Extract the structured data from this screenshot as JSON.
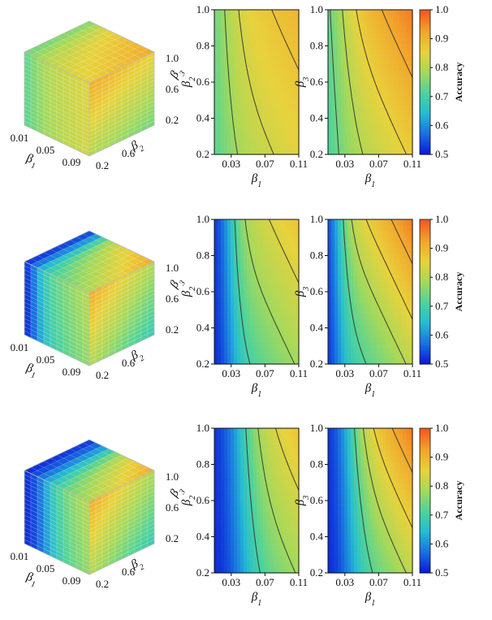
{
  "colors": {
    "colormap": [
      "#0b1bd6",
      "#1a73e0",
      "#26bcd3",
      "#4fd39a",
      "#a6d95a",
      "#e8d23c",
      "#f2a52c",
      "#f25a22"
    ],
    "contour_line": "#333333",
    "cube_frame": "#bbbbbb"
  },
  "colorbar": {
    "label": "Accuracy",
    "ticks": [
      "0.5",
      "0.6",
      "0.7",
      "0.8",
      "0.9",
      "1.0"
    ],
    "range": [
      0.5,
      1.0
    ]
  },
  "chart_data": [
    {
      "type": "heatmap",
      "style": "3d-cube",
      "row": 1,
      "axes": {
        "x": "β1",
        "y": "β2",
        "z": "β3"
      },
      "x_ticks": [
        "0.01",
        "0.05",
        "0.09"
      ],
      "y_ticks": [
        "0.6",
        "0.2"
      ],
      "z_ticks": [
        "1.0",
        "0.6",
        "0.2"
      ],
      "profile": {
        "floor": 0.72,
        "gain": 0.2,
        "power": 1.0,
        "mid": 0.02,
        "width": 0.012
      }
    },
    {
      "type": "heatmap",
      "style": "contour",
      "row": 1,
      "projection": "β1-β2",
      "xlabel": "β1",
      "ylabel": "β2",
      "x_ticks": [
        "0.03",
        "0.07",
        "0.11"
      ],
      "y_ticks": [
        "0.2",
        "0.4",
        "0.6",
        "0.8",
        "1.0"
      ],
      "xlim": [
        0.01,
        0.11
      ],
      "ylim": [
        0.2,
        1.0
      ],
      "profile": {
        "floor": 0.7,
        "gain": 0.2,
        "power": 0.8,
        "mid": 0.02,
        "width": 0.012
      },
      "contour_levels": [
        0.78,
        0.83,
        0.88
      ]
    },
    {
      "type": "heatmap",
      "style": "contour",
      "row": 1,
      "projection": "β1-β3",
      "xlabel": "β1",
      "ylabel": "β3",
      "x_ticks": [
        "0.03",
        "0.07",
        "0.11"
      ],
      "y_ticks": [
        "0.2",
        "0.4",
        "0.6",
        "0.8",
        "1.0"
      ],
      "xlim": [
        0.01,
        0.11
      ],
      "ylim": [
        0.2,
        1.0
      ],
      "profile": {
        "floor": 0.68,
        "gain": 0.29,
        "power": 1.3,
        "mid": 0.02,
        "width": 0.012
      },
      "contour_levels": [
        0.74,
        0.8,
        0.86,
        0.92
      ]
    },
    {
      "type": "heatmap",
      "style": "3d-cube",
      "row": 2,
      "axes": {
        "x": "β1",
        "y": "β2",
        "z": "β3"
      },
      "x_ticks": [
        "0.01",
        "0.05",
        "0.09"
      ],
      "y_ticks": [
        "0.6",
        "0.2"
      ],
      "z_ticks": [
        "1.0",
        "0.6",
        "0.2"
      ],
      "profile": {
        "floor": 0.5,
        "gain": 0.42,
        "power": 1.0,
        "mid": 0.028,
        "width": 0.008
      }
    },
    {
      "type": "heatmap",
      "style": "contour",
      "row": 2,
      "projection": "β1-β2",
      "xlabel": "β1",
      "ylabel": "β2",
      "x_ticks": [
        "0.03",
        "0.07",
        "0.11"
      ],
      "y_ticks": [
        "0.2",
        "0.4",
        "0.6",
        "0.8",
        "1.0"
      ],
      "xlim": [
        0.01,
        0.11
      ],
      "ylim": [
        0.2,
        1.0
      ],
      "profile": {
        "floor": 0.5,
        "gain": 0.38,
        "power": 0.8,
        "mid": 0.028,
        "width": 0.008
      },
      "contour_levels": [
        0.7,
        0.78,
        0.84,
        0.88
      ]
    },
    {
      "type": "heatmap",
      "style": "contour",
      "row": 2,
      "projection": "β1-β3",
      "xlabel": "β1",
      "ylabel": "β3",
      "x_ticks": [
        "0.03",
        "0.07",
        "0.11"
      ],
      "y_ticks": [
        "0.2",
        "0.4",
        "0.6",
        "0.8",
        "1.0"
      ],
      "xlim": [
        0.01,
        0.11
      ],
      "ylim": [
        0.2,
        1.0
      ],
      "profile": {
        "floor": 0.5,
        "gain": 0.47,
        "power": 1.2,
        "mid": 0.022,
        "width": 0.007
      },
      "contour_levels": [
        0.72,
        0.8,
        0.86,
        0.92
      ]
    },
    {
      "type": "heatmap",
      "style": "3d-cube",
      "row": 3,
      "axes": {
        "x": "β1",
        "y": "β2",
        "z": "β3"
      },
      "x_ticks": [
        "0.01",
        "0.05",
        "0.09"
      ],
      "y_ticks": [
        "0.6",
        "0.2"
      ],
      "z_ticks": [
        "1.0",
        "0.6",
        "0.2"
      ],
      "profile": {
        "floor": 0.5,
        "gain": 0.42,
        "power": 1.0,
        "mid": 0.04,
        "width": 0.012
      }
    },
    {
      "type": "heatmap",
      "style": "contour",
      "row": 3,
      "projection": "β1-β2",
      "xlabel": "β1",
      "ylabel": "β2",
      "x_ticks": [
        "0.03",
        "0.07",
        "0.11"
      ],
      "y_ticks": [
        "0.2",
        "0.4",
        "0.6",
        "0.8",
        "1.0"
      ],
      "xlim": [
        0.01,
        0.11
      ],
      "ylim": [
        0.2,
        1.0
      ],
      "profile": {
        "floor": 0.5,
        "gain": 0.38,
        "power": 0.8,
        "mid": 0.04,
        "width": 0.012
      },
      "contour_levels": [
        0.7,
        0.78,
        0.84
      ]
    },
    {
      "type": "heatmap",
      "style": "contour",
      "row": 3,
      "projection": "β1-β3",
      "xlabel": "β1",
      "ylabel": "β3",
      "x_ticks": [
        "0.03",
        "0.07",
        "0.11"
      ],
      "y_ticks": [
        "0.2",
        "0.4",
        "0.6",
        "0.8",
        "1.0"
      ],
      "xlim": [
        0.01,
        0.11
      ],
      "ylim": [
        0.2,
        1.0
      ],
      "profile": {
        "floor": 0.5,
        "gain": 0.47,
        "power": 1.2,
        "mid": 0.035,
        "width": 0.01
      },
      "contour_levels": [
        0.72,
        0.8,
        0.86,
        0.92
      ]
    }
  ]
}
